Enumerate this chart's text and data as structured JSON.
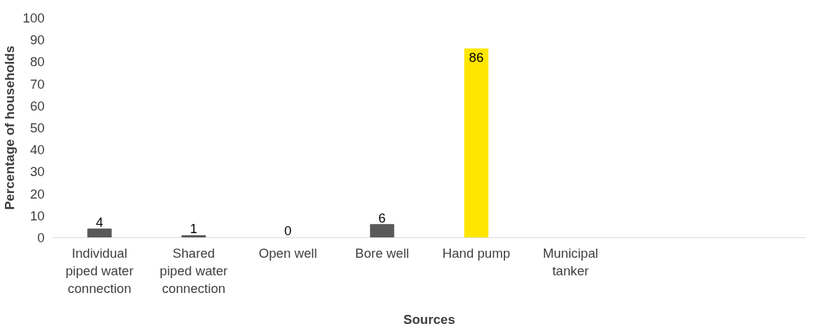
{
  "chart_data": {
    "type": "bar",
    "xlabel": "Sources",
    "ylabel": "Percentage of households",
    "categories": [
      "Individual piped water connection",
      "Shared piped water connection",
      "Open well",
      "Bore well",
      "Hand pump",
      "Municipal tanker",
      null,
      null
    ],
    "values": [
      4,
      1,
      0,
      6,
      86,
      null,
      null,
      null
    ],
    "colors": [
      "#595959",
      "#595959",
      "#595959",
      "#595959",
      "#ffe600",
      "#595959",
      "#595959",
      "#595959"
    ],
    "ylim": [
      0,
      100
    ],
    "yticks": [
      0,
      10,
      20,
      30,
      40,
      50,
      60,
      70,
      80,
      90,
      100
    ],
    "grid": false,
    "data_labels": true
  }
}
